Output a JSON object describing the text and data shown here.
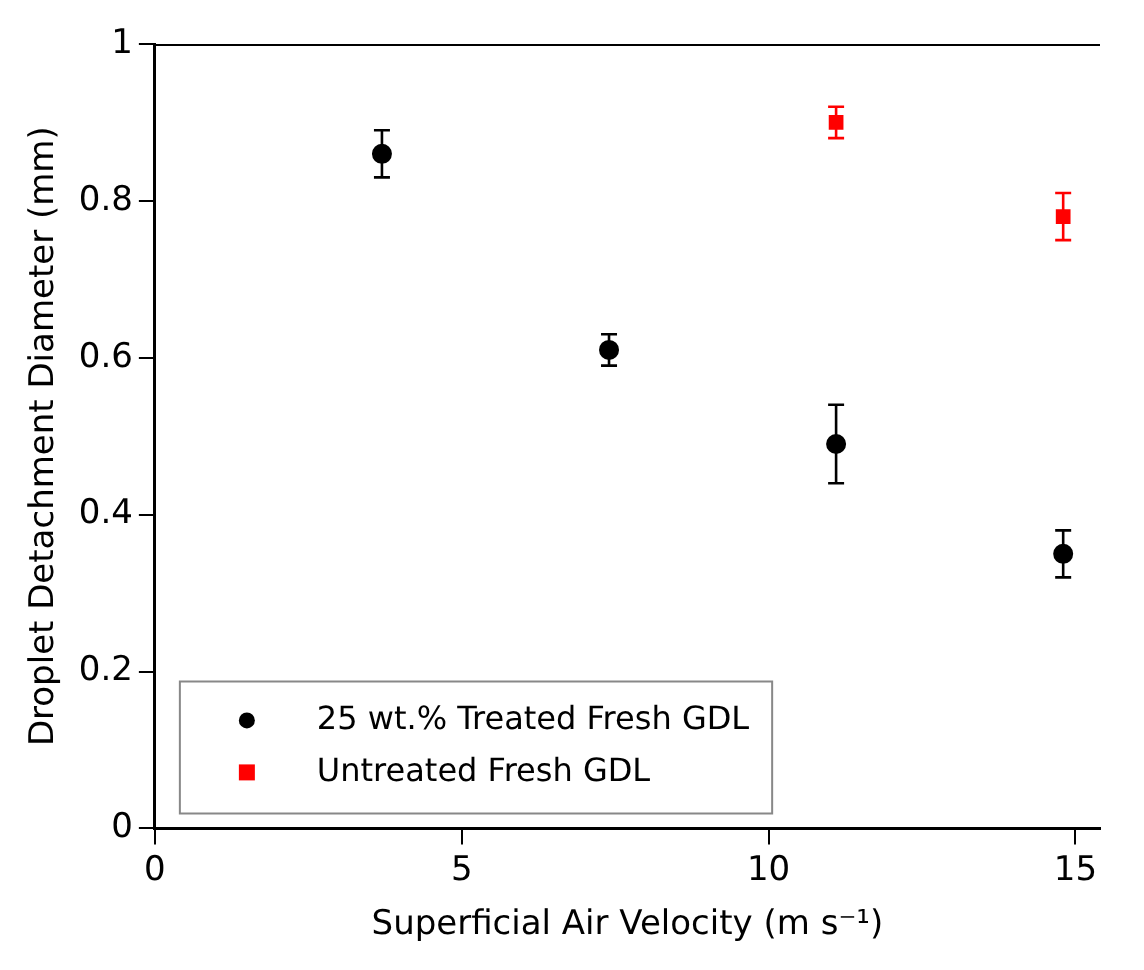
{
  "chart_data": {
    "type": "scatter",
    "xlabel": "Superficial Air Velocity (m s⁻¹)",
    "ylabel": "Droplet Detachment Diameter (mm)",
    "xlim": [
      0,
      15.4
    ],
    "xticks": [
      0,
      5,
      10,
      15
    ],
    "ylim": [
      0,
      1
    ],
    "yticks": [
      0,
      0.2,
      0.4,
      0.6,
      0.8,
      1
    ],
    "grid": false,
    "legend": "bottom left",
    "series": [
      {
        "name": "25 wt.% Treated Fresh GDL",
        "color": "#000000",
        "marker": "circle",
        "x": [
          3.7,
          7.4,
          11.1,
          14.8
        ],
        "values": [
          0.86,
          0.61,
          0.49,
          0.35
        ],
        "errors": [
          0.03,
          0.02,
          [
            0.44,
            0.54
          ],
          0.03
        ]
      },
      {
        "name": "Untreated Fresh GDL",
        "color": "#ff0000",
        "marker": "square",
        "x": [
          11.1,
          14.8
        ],
        "values": [
          0.9,
          0.78
        ],
        "errors": [
          0.02,
          0.03
        ]
      }
    ]
  }
}
